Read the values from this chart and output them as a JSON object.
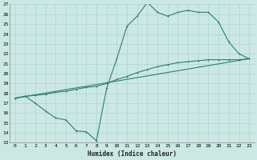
{
  "xlabel": "Humidex (Indice chaleur)",
  "bg_color": "#cce8e5",
  "line_color": "#2e7d72",
  "grid_color": "#b0d8d4",
  "xlim": [
    -0.5,
    23.5
  ],
  "ylim": [
    13,
    27
  ],
  "xticks": [
    0,
    1,
    2,
    3,
    4,
    5,
    6,
    7,
    8,
    9,
    10,
    11,
    12,
    13,
    14,
    15,
    16,
    17,
    18,
    19,
    20,
    21,
    22,
    23
  ],
  "yticks": [
    13,
    14,
    15,
    16,
    17,
    18,
    19,
    20,
    21,
    22,
    23,
    24,
    25,
    26,
    27
  ],
  "line1_x": [
    0,
    1,
    2,
    3,
    4,
    5,
    6,
    7,
    8,
    9,
    10,
    11,
    12,
    13,
    14,
    15,
    16,
    17,
    18,
    19,
    20,
    21,
    22,
    23
  ],
  "line1_y": [
    17.5,
    17.7,
    17.0,
    16.2,
    15.5,
    15.3,
    14.2,
    14.1,
    13.2,
    18.5,
    21.5,
    24.8,
    25.8,
    27.2,
    26.2,
    25.8,
    26.2,
    26.4,
    26.2,
    26.2,
    25.2,
    23.2,
    22.0,
    21.5
  ],
  "line2_x": [
    0,
    1,
    2,
    3,
    4,
    5,
    6,
    7,
    8,
    9,
    10,
    11,
    12,
    13,
    14,
    15,
    16,
    17,
    18,
    19,
    20,
    21,
    22,
    23
  ],
  "line2_y": [
    17.5,
    17.7,
    17.8,
    17.9,
    18.1,
    18.2,
    18.4,
    18.6,
    18.7,
    19.0,
    19.4,
    19.7,
    20.1,
    20.4,
    20.7,
    20.9,
    21.1,
    21.2,
    21.3,
    21.4,
    21.4,
    21.4,
    21.4,
    21.5
  ],
  "line3_x": [
    0,
    23
  ],
  "line3_y": [
    17.5,
    21.5
  ]
}
